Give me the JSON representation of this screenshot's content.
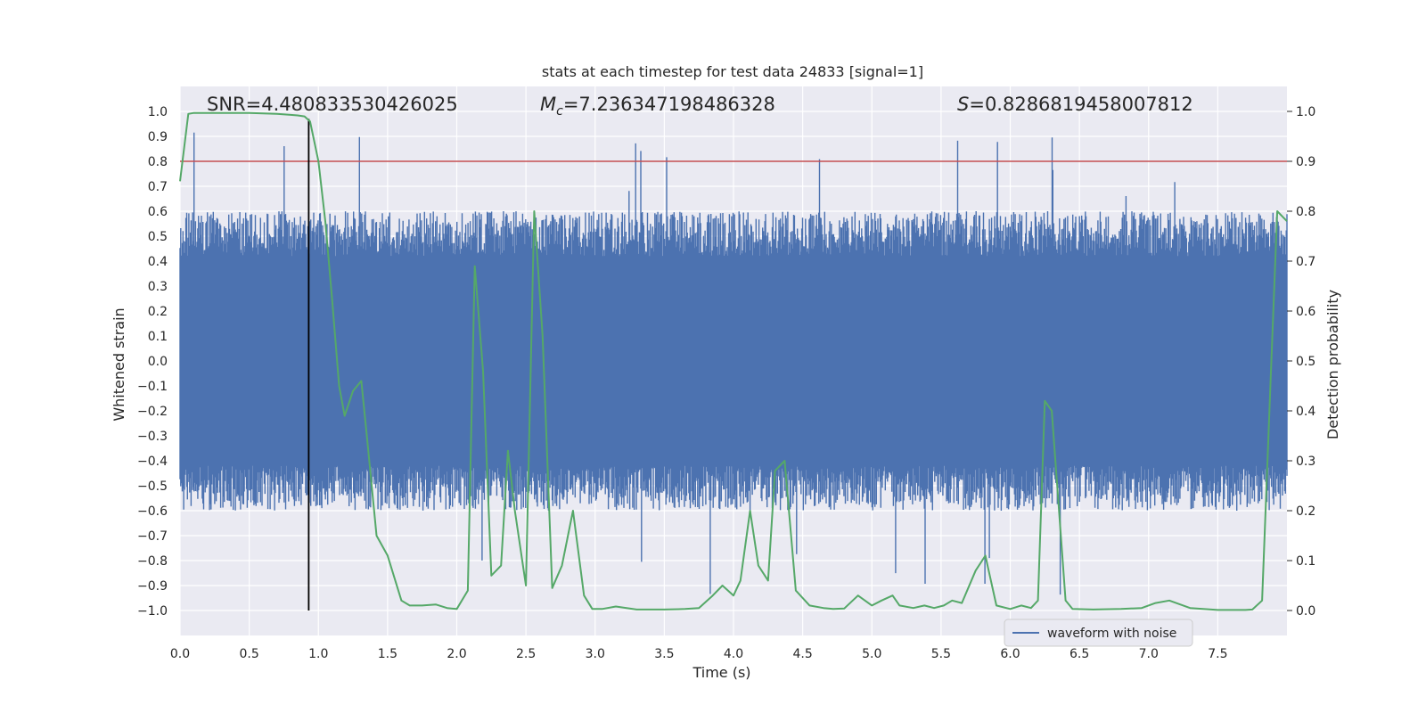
{
  "chart_data": {
    "type": "line",
    "title": "stats at each timestep for test data 24833 [signal=1]",
    "xlabel": "Time (s)",
    "ylabel": "Whitened strain",
    "y2label": "Detection probability",
    "xlim": [
      0.0,
      8.0
    ],
    "ylim": [
      -1.1,
      1.1
    ],
    "y2lim": [
      -0.05,
      1.05
    ],
    "xticks": [
      "0.0",
      "0.5",
      "1.0",
      "1.5",
      "2.0",
      "2.5",
      "3.0",
      "3.5",
      "4.0",
      "4.5",
      "5.0",
      "5.5",
      "6.0",
      "6.5",
      "7.0",
      "7.5"
    ],
    "yticks": [
      "1.0",
      "0.9",
      "0.8",
      "0.7",
      "0.6",
      "0.5",
      "0.4",
      "0.3",
      "0.2",
      "0.1",
      "0.0",
      "-0.1",
      "-0.2",
      "-0.3",
      "-0.4",
      "-0.5",
      "-0.6",
      "-0.7",
      "-0.8",
      "-0.9",
      "-1.0"
    ],
    "y2ticks": [
      "1.0",
      "0.9",
      "0.8",
      "0.7",
      "0.6",
      "0.5",
      "0.4",
      "0.3",
      "0.2",
      "0.1",
      "0.0"
    ],
    "annotations": {
      "snr": "SNR=4.480833530426025",
      "mc_prefix": "M",
      "mc_sub": "c",
      "mc_value": "=7.236347198486328",
      "s_prefix": "S",
      "s_value": "=0.8286819458007812"
    },
    "threshold_line": {
      "y2": 0.9,
      "color": "#c44e52"
    },
    "merger_line": {
      "x": 0.93,
      "y_from": -1.0,
      "y_to": 0.97,
      "color": "#000000"
    },
    "legend": {
      "label": "waveform with noise",
      "position": "lower-right"
    },
    "colors": {
      "waveform": "#4c72b0",
      "probability": "#55a868",
      "background": "#eaeaf2",
      "grid": "#ffffff"
    },
    "series": [
      {
        "name": "waveform with noise",
        "axis": "left",
        "description": "dense noisy whitened strain samples, envelope roughly -0.6 to 0.6 with spikes to about ±0.95"
      },
      {
        "name": "Detection probability",
        "axis": "right",
        "x": [
          0.0,
          0.06,
          0.1,
          0.2,
          0.3,
          0.4,
          0.5,
          0.6,
          0.7,
          0.8,
          0.85,
          0.9,
          0.94,
          1.0,
          1.05,
          1.1,
          1.15,
          1.19,
          1.25,
          1.31,
          1.35,
          1.42,
          1.5,
          1.6,
          1.66,
          1.75,
          1.85,
          1.93,
          2.0,
          2.08,
          2.13,
          2.19,
          2.25,
          2.32,
          2.37,
          2.42,
          2.5,
          2.56,
          2.62,
          2.69,
          2.76,
          2.84,
          2.92,
          2.98,
          3.05,
          3.15,
          3.3,
          3.5,
          3.65,
          3.75,
          3.85,
          3.92,
          4.0,
          4.05,
          4.12,
          4.18,
          4.25,
          4.3,
          4.37,
          4.45,
          4.55,
          4.65,
          4.72,
          4.8,
          4.9,
          5.0,
          5.07,
          5.15,
          5.2,
          5.3,
          5.38,
          5.45,
          5.52,
          5.58,
          5.65,
          5.75,
          5.82,
          5.9,
          6.0,
          6.08,
          6.15,
          6.2,
          6.25,
          6.3,
          6.4,
          6.45,
          6.6,
          6.8,
          6.95,
          7.05,
          7.15,
          7.3,
          7.5,
          7.7,
          7.75,
          7.82,
          7.88,
          7.93,
          8.0
        ],
        "y": [
          0.86,
          0.995,
          0.997,
          0.997,
          0.997,
          0.997,
          0.997,
          0.996,
          0.995,
          0.993,
          0.992,
          0.99,
          0.98,
          0.9,
          0.78,
          0.62,
          0.45,
          0.39,
          0.44,
          0.46,
          0.35,
          0.15,
          0.11,
          0.02,
          0.01,
          0.01,
          0.012,
          0.005,
          0.003,
          0.04,
          0.69,
          0.48,
          0.07,
          0.09,
          0.32,
          0.2,
          0.05,
          0.8,
          0.55,
          0.045,
          0.09,
          0.2,
          0.03,
          0.003,
          0.003,
          0.008,
          0.002,
          0.002,
          0.003,
          0.005,
          0.03,
          0.05,
          0.03,
          0.06,
          0.2,
          0.09,
          0.06,
          0.28,
          0.3,
          0.04,
          0.01,
          0.005,
          0.003,
          0.004,
          0.03,
          0.01,
          0.02,
          0.03,
          0.01,
          0.005,
          0.01,
          0.005,
          0.01,
          0.02,
          0.015,
          0.08,
          0.11,
          0.01,
          0.003,
          0.01,
          0.005,
          0.02,
          0.42,
          0.4,
          0.02,
          0.003,
          0.002,
          0.003,
          0.005,
          0.015,
          0.02,
          0.005,
          0.001,
          0.001,
          0.002,
          0.02,
          0.45,
          0.8,
          0.78
        ]
      }
    ]
  }
}
